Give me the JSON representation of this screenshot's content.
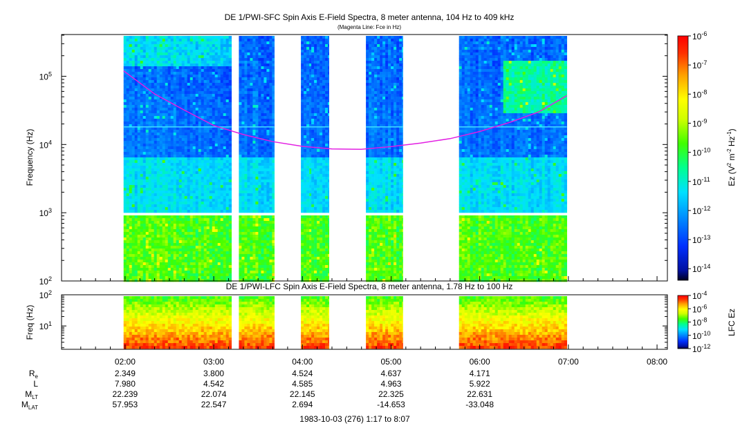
{
  "chart_data": [
    {
      "type": "heatmap",
      "title": "DE 1/PWI-SFC  Spin Axis E-Field Spectra, 8 meter antenna, 104 Hz to 409 kHz",
      "subtitle": "(Magenta Line: Fce in Hz)",
      "ylabel": "Frequency (Hz)",
      "yscale": "log",
      "ylim": [
        100,
        409000
      ],
      "yticks": [
        {
          "base": "10",
          "exp": "2"
        },
        {
          "base": "10",
          "exp": "3"
        },
        {
          "base": "10",
          "exp": "4"
        },
        {
          "base": "10",
          "exp": "5"
        }
      ],
      "colorbar": {
        "label": "Ez (V² m⁻² Hz⁻¹)",
        "label_parts": {
          "a": "Ez (V",
          "b": "2",
          "c": " m",
          "d": "-2",
          "e": " Hz",
          "f": "-1",
          "g": ")"
        },
        "scale": "log",
        "range": [
          4e-15,
          1e-06
        ],
        "ticks": [
          {
            "base": "10",
            "exp": "-6"
          },
          {
            "base": "10",
            "exp": "-7"
          },
          {
            "base": "10",
            "exp": "-8"
          },
          {
            "base": "10",
            "exp": "-9"
          },
          {
            "base": "10",
            "exp": "-10"
          },
          {
            "base": "10",
            "exp": "-11"
          },
          {
            "base": "10",
            "exp": "-12"
          },
          {
            "base": "10",
            "exp": "-13"
          },
          {
            "base": "10",
            "exp": "-14"
          }
        ]
      },
      "data_intervals_utc": [
        [
          "01:59",
          "03:12"
        ],
        [
          "03:17",
          "03:41"
        ],
        [
          "03:59",
          "04:06"
        ],
        [
          "04:06",
          "04:18"
        ],
        [
          "04:43",
          "05:08"
        ],
        [
          "05:46",
          "06:59"
        ]
      ],
      "fce_curve": {
        "name": "Fce in Hz",
        "color": "#e21ee2",
        "points": [
          {
            "time": "01:59",
            "hz": 120000
          },
          {
            "time": "02:20",
            "hz": 55000
          },
          {
            "time": "02:40",
            "hz": 32000
          },
          {
            "time": "03:00",
            "hz": 19000
          },
          {
            "time": "03:20",
            "hz": 14000
          },
          {
            "time": "03:40",
            "hz": 11000
          },
          {
            "time": "04:00",
            "hz": 9400
          },
          {
            "time": "04:20",
            "hz": 8600
          },
          {
            "time": "04:40",
            "hz": 8500
          },
          {
            "time": "05:00",
            "hz": 9300
          },
          {
            "time": "05:20",
            "hz": 10500
          },
          {
            "time": "05:40",
            "hz": 12200
          },
          {
            "time": "06:00",
            "hz": 15500
          },
          {
            "time": "06:20",
            "hz": 21000
          },
          {
            "time": "06:40",
            "hz": 30000
          },
          {
            "time": "06:59",
            "hz": 52000
          }
        ]
      }
    },
    {
      "type": "heatmap",
      "title": "DE 1/PWI-LFC  Spin Axis E-Field Spectra, 8 meter antenna, 1.78 Hz to 100 Hz",
      "ylabel": "Freq (Hz)",
      "yscale": "log",
      "ylim": [
        1.78,
        100
      ],
      "yticks": [
        {
          "base": "10",
          "exp": "1"
        },
        {
          "base": "10",
          "exp": "2"
        }
      ],
      "colorbar": {
        "label": "LFC Ez",
        "scale": "log",
        "range": [
          1e-12,
          0.0001
        ],
        "ticks": [
          {
            "base": "10",
            "exp": "-4"
          },
          {
            "base": "10",
            "exp": "-6"
          },
          {
            "base": "10",
            "exp": "-8"
          },
          {
            "base": "10",
            "exp": "-10"
          },
          {
            "base": "10",
            "exp": "-12"
          }
        ]
      },
      "data_intervals_utc": [
        [
          "01:59",
          "03:12"
        ],
        [
          "03:17",
          "03:41"
        ],
        [
          "03:59",
          "04:06"
        ],
        [
          "04:06",
          "04:18"
        ],
        [
          "04:43",
          "05:08"
        ],
        [
          "05:46",
          "06:59"
        ]
      ]
    }
  ],
  "x_axis": {
    "ticks": [
      "02:00",
      "03:00",
      "04:00",
      "05:00",
      "06:00",
      "07:00",
      "08:00"
    ],
    "caption": "1983-10-03 (276) 1:17 to 8:07"
  },
  "ephemeris": {
    "rows": [
      {
        "label": "R",
        "sub": "e",
        "values": [
          "2.349",
          "3.800",
          "4.524",
          "4.637",
          "4.171"
        ]
      },
      {
        "label": "L",
        "sub": "",
        "values": [
          "7.980",
          "4.542",
          "4.585",
          "4.963",
          "5.922"
        ]
      },
      {
        "label": "M",
        "sub": "LT",
        "values": [
          "22.239",
          "22.074",
          "22.145",
          "22.325",
          "22.631"
        ]
      },
      {
        "label": "M",
        "sub": "LAT",
        "values": [
          "57.953",
          "22.547",
          "2.694",
          "-14.653",
          "-33.048"
        ]
      }
    ]
  }
}
